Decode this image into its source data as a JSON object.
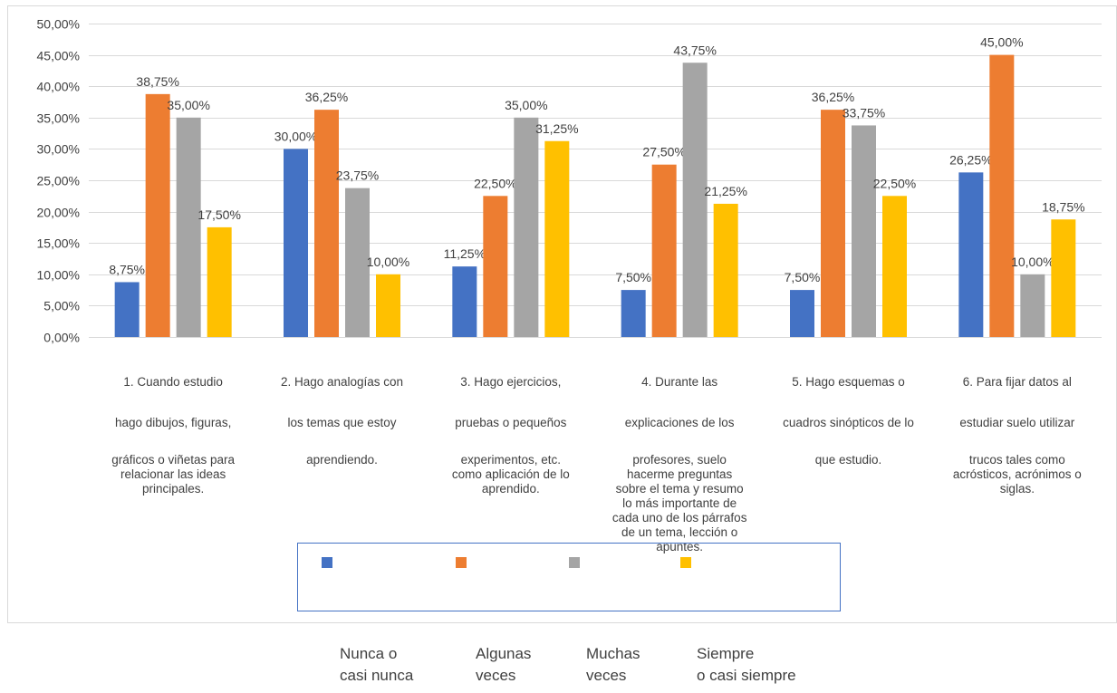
{
  "chart_data": {
    "type": "bar",
    "y_ticks": [
      "50,00%",
      "45,00%",
      "40,00%",
      "35,00%",
      "30,00%",
      "25,00%",
      "20,00%",
      "15,00%",
      "10,00%",
      "5,00%",
      "0,00%"
    ],
    "ylim": [
      0,
      50
    ],
    "grid": true,
    "categories": [
      [
        "1. Cuando  estudio",
        "hago dibujos, figuras,",
        "gráficos o viñetas para",
        "relacionar las ideas",
        "principales."
      ],
      [
        "2. Hago analogías con",
        "los temas que estoy",
        "aprendiendo."
      ],
      [
        "3. Hago ejercicios,",
        "pruebas o pequeños",
        "experimentos, etc.",
        "como aplicación de lo",
        "aprendido."
      ],
      [
        "4. Durante  las",
        "explicaciones de los",
        "profesores,  suelo",
        "hacerme preguntas",
        "sobre el tema y resumo",
        "lo más importante de",
        "cada uno de los párrafos",
        "de un tema, lección o",
        "apuntes."
      ],
      [
        "5. Hago esquemas o",
        "cuadros sinópticos de lo",
        "que estudio."
      ],
      [
        "6. Para  fijar datos  al",
        "estudiar  suelo  utilizar",
        "trucos  tales  como",
        "acrósticos, acrónimos o",
        "siglas."
      ]
    ],
    "series": [
      {
        "name": "Nunca o casi nunca",
        "color": "#4472c4",
        "values": [
          8.75,
          30.0,
          11.25,
          7.5,
          7.5,
          26.25
        ],
        "labels": [
          "8,75%",
          "30,00%",
          "11,25%",
          "7,50%",
          "7,50%",
          "26,25%"
        ]
      },
      {
        "name": "Algunas veces",
        "color": "#ed7d31",
        "values": [
          38.75,
          36.25,
          22.5,
          27.5,
          36.25,
          45.0
        ],
        "labels": [
          "38,75%",
          "36,25%",
          "22,50%",
          "27,50%",
          "36,25%",
          "45,00%"
        ]
      },
      {
        "name": "Muchas veces",
        "color": "#a5a5a5",
        "values": [
          35.0,
          23.75,
          35.0,
          43.75,
          33.75,
          10.0
        ],
        "labels": [
          "35,00%",
          "23,75%",
          "35,00%",
          "43,75%",
          "33,75%",
          "10,00%"
        ]
      },
      {
        "name": "Siempre o casi siempre",
        "color": "#ffc000",
        "values": [
          17.5,
          10.0,
          31.25,
          21.25,
          22.5,
          18.75
        ],
        "labels": [
          "17,50%",
          "10,00%",
          "31,25%",
          "21,25%",
          "22,50%",
          "18,75%"
        ]
      }
    ],
    "legend": {
      "position": "bottom",
      "names": [
        [
          "Nunca o",
          "casi nunca"
        ],
        [
          "Algunas",
          "veces"
        ],
        [
          "Muchas",
          "veces"
        ],
        [
          "Siempre",
          "o casi siempre"
        ]
      ]
    }
  }
}
